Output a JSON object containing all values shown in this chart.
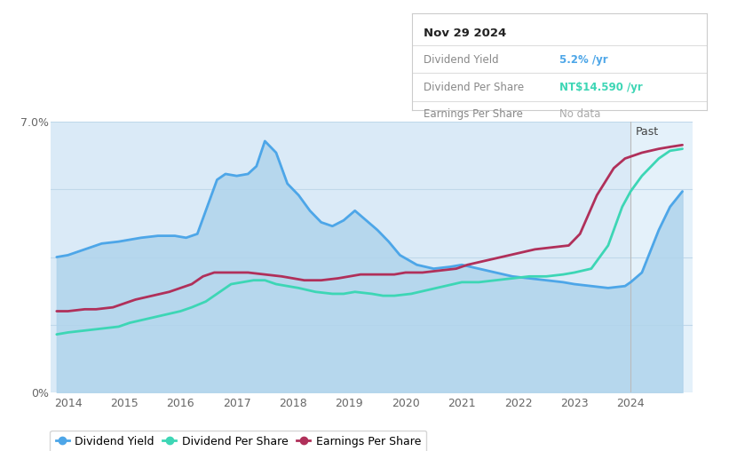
{
  "bg_color": "#ffffff",
  "plot_bg_color": "#daeaf7",
  "future_bg_color": "#e4f1fa",
  "x_min": 2013.7,
  "x_max": 2025.1,
  "y_min": 0.0,
  "y_max": 7.0,
  "future_start": 2024.0,
  "xtick_years": [
    2014,
    2015,
    2016,
    2017,
    2018,
    2019,
    2020,
    2021,
    2022,
    2023,
    2024
  ],
  "div_yield_color": "#4da6e8",
  "div_per_share_color": "#3dd6b5",
  "earnings_per_share_color": "#b0305a",
  "fill_color": "#b0d4ec",
  "tooltip_date": "Nov 29 2024",
  "tooltip_div_yield": "5.2% /yr",
  "tooltip_div_per_share": "NT$14.590 /yr",
  "tooltip_earnings": "No data",
  "tooltip_div_yield_color": "#4da6e8",
  "tooltip_div_per_share_color": "#3dd6b5",
  "tooltip_earnings_color": "#aaaaaa",
  "past_label": "Past",
  "dividend_yield": {
    "x": [
      2013.8,
      2014.0,
      2014.3,
      2014.6,
      2014.9,
      2015.1,
      2015.3,
      2015.6,
      2015.9,
      2016.1,
      2016.3,
      2016.5,
      2016.65,
      2016.8,
      2017.0,
      2017.2,
      2017.35,
      2017.5,
      2017.7,
      2017.9,
      2018.1,
      2018.3,
      2018.5,
      2018.7,
      2018.9,
      2019.1,
      2019.3,
      2019.5,
      2019.7,
      2019.9,
      2020.2,
      2020.5,
      2020.8,
      2021.0,
      2021.3,
      2021.6,
      2021.9,
      2022.2,
      2022.5,
      2022.8,
      2023.0,
      2023.3,
      2023.6,
      2023.9,
      2024.0,
      2024.2,
      2024.5,
      2024.7,
      2024.92
    ],
    "y": [
      3.5,
      3.55,
      3.7,
      3.85,
      3.9,
      3.95,
      4.0,
      4.05,
      4.05,
      4.0,
      4.1,
      4.9,
      5.5,
      5.65,
      5.6,
      5.65,
      5.85,
      6.5,
      6.2,
      5.4,
      5.1,
      4.7,
      4.4,
      4.3,
      4.45,
      4.7,
      4.45,
      4.2,
      3.9,
      3.55,
      3.3,
      3.2,
      3.25,
      3.3,
      3.2,
      3.1,
      3.0,
      2.95,
      2.9,
      2.85,
      2.8,
      2.75,
      2.7,
      2.75,
      2.85,
      3.1,
      4.2,
      4.8,
      5.2
    ]
  },
  "dividend_per_share": {
    "x": [
      2013.8,
      2014.0,
      2014.3,
      2014.6,
      2014.9,
      2015.1,
      2015.4,
      2015.7,
      2016.0,
      2016.2,
      2016.45,
      2016.7,
      2016.9,
      2017.1,
      2017.3,
      2017.5,
      2017.7,
      2017.9,
      2018.1,
      2018.4,
      2018.7,
      2018.9,
      2019.1,
      2019.4,
      2019.6,
      2019.8,
      2020.1,
      2020.4,
      2020.7,
      2021.0,
      2021.3,
      2021.6,
      2021.9,
      2022.2,
      2022.5,
      2022.8,
      2023.0,
      2023.3,
      2023.6,
      2023.85,
      2024.0,
      2024.2,
      2024.5,
      2024.7,
      2024.92
    ],
    "y": [
      1.5,
      1.55,
      1.6,
      1.65,
      1.7,
      1.8,
      1.9,
      2.0,
      2.1,
      2.2,
      2.35,
      2.6,
      2.8,
      2.85,
      2.9,
      2.9,
      2.8,
      2.75,
      2.7,
      2.6,
      2.55,
      2.55,
      2.6,
      2.55,
      2.5,
      2.5,
      2.55,
      2.65,
      2.75,
      2.85,
      2.85,
      2.9,
      2.95,
      3.0,
      3.0,
      3.05,
      3.1,
      3.2,
      3.8,
      4.8,
      5.2,
      5.6,
      6.05,
      6.25,
      6.3
    ]
  },
  "earnings_per_share": {
    "x": [
      2013.8,
      2014.0,
      2014.3,
      2014.5,
      2014.8,
      2015.0,
      2015.2,
      2015.5,
      2015.8,
      2016.0,
      2016.2,
      2016.4,
      2016.6,
      2016.8,
      2017.0,
      2017.2,
      2017.5,
      2017.8,
      2018.0,
      2018.2,
      2018.5,
      2018.8,
      2019.0,
      2019.2,
      2019.5,
      2019.8,
      2020.0,
      2020.3,
      2020.6,
      2020.9,
      2021.1,
      2021.4,
      2021.7,
      2022.0,
      2022.3,
      2022.6,
      2022.9,
      2023.1,
      2023.4,
      2023.7,
      2023.9,
      2024.0,
      2024.2,
      2024.5,
      2024.7,
      2024.92
    ],
    "y": [
      2.1,
      2.1,
      2.15,
      2.15,
      2.2,
      2.3,
      2.4,
      2.5,
      2.6,
      2.7,
      2.8,
      3.0,
      3.1,
      3.1,
      3.1,
      3.1,
      3.05,
      3.0,
      2.95,
      2.9,
      2.9,
      2.95,
      3.0,
      3.05,
      3.05,
      3.05,
      3.1,
      3.1,
      3.15,
      3.2,
      3.3,
      3.4,
      3.5,
      3.6,
      3.7,
      3.75,
      3.8,
      4.1,
      5.1,
      5.8,
      6.05,
      6.1,
      6.2,
      6.3,
      6.35,
      6.4
    ]
  }
}
